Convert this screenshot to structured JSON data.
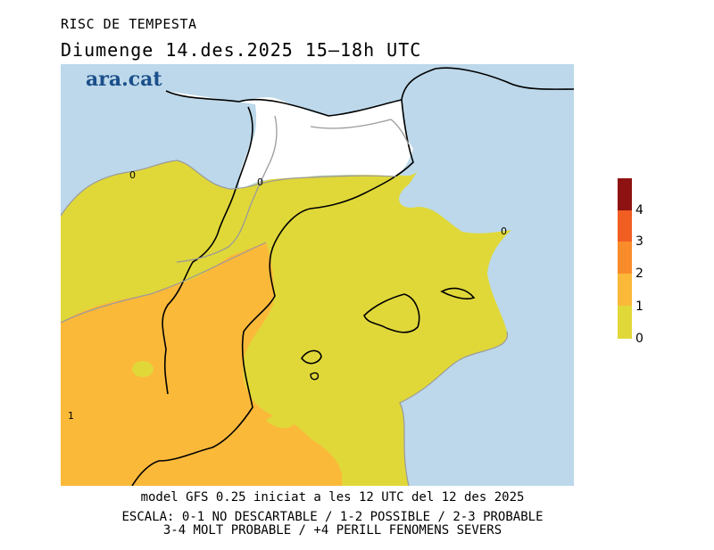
{
  "header": {
    "title": "RISC DE TEMPESTA",
    "date_line": "Diumenge  14.des.2025  15–18h  UTC",
    "logo": "ara.cat"
  },
  "map": {
    "contour_labels": [
      "0",
      "0",
      "0",
      "1"
    ],
    "colors": {
      "sea": "#bcd8ea",
      "land_level_0_1": "#e0d839",
      "land_level_1_2": "#fbb93a",
      "land_level_2_3": "#f98c2a",
      "land_level_3_4": "#f15e22",
      "land_level_4_plus": "#8e1212",
      "unfilled_land": "#ffffff"
    }
  },
  "legend": {
    "ticks": [
      "0",
      "1",
      "2",
      "3",
      "4"
    ],
    "colors": [
      "#e0d839",
      "#fbb93a",
      "#f98c2a",
      "#f15e22",
      "#d23a1c",
      "#8e1212"
    ]
  },
  "footer": {
    "model_line": "model GFS 0.25 iniciat a les 12 UTC del 12 des 2025",
    "scale_line_1": "ESCALA: 0-1 NO DESCARTABLE / 1-2 POSSIBLE / 2-3 PROBABLE",
    "scale_line_2": "3-4 MOLT PROBABLE / +4 PERILL FENOMENS SEVERS"
  }
}
